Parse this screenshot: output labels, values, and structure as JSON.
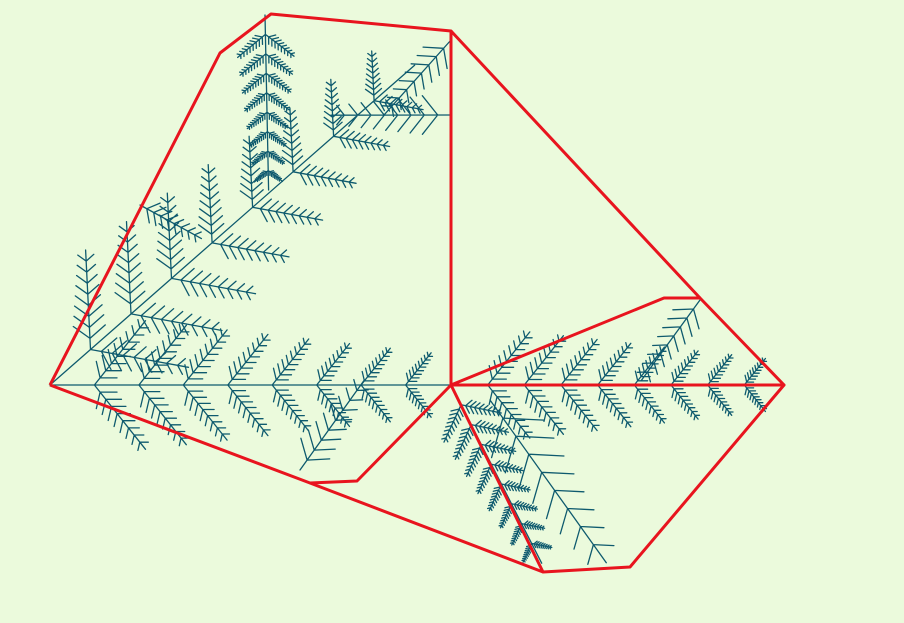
{
  "colors": {
    "background": "#ebfadc",
    "outline": "#e8141e",
    "fern": "#0e5a6e"
  },
  "figure": {
    "kind": "fractal fern tree bounded by convex hull polygons"
  }
}
